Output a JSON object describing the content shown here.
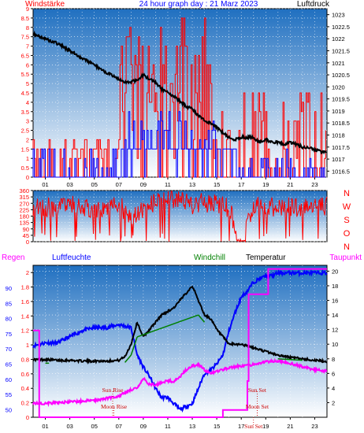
{
  "title": "24 hour graph day : 21 Marz 2023",
  "colors": {
    "wind": "#ff0000",
    "gust": "#0000ff",
    "pressure": "#000000",
    "wind_dir": "#ff0000",
    "humidity": "#0000ff",
    "temperature": "#000000",
    "windchill": "#008000",
    "dewpoint": "#ff00ff",
    "rain": "#ff0000",
    "label_red": "#ff0000",
    "label_blue": "#0000ff",
    "label_magenta": "#ff00ff",
    "sky_top": "#1f6fc0",
    "sky_bottom": "#ffffff"
  },
  "chart_data": [
    {
      "type": "line",
      "name": "wind-pressure",
      "title": "24 hour graph day : 21 Marz 2023",
      "left_axis_label": "Windstärke",
      "right_axis_label": "Luftdruck",
      "y_left": {
        "min": 0,
        "max": 9,
        "ticks": [
          "0",
          "0.5",
          "1",
          "1.5",
          "2",
          "2.5",
          "3",
          "3.5",
          "4",
          "4.5",
          "5",
          "5.5",
          "6",
          "6.5",
          "7",
          "7.5",
          "8",
          "8.5",
          "9"
        ]
      },
      "y_right": {
        "min": 1016.25,
        "max": 1023.25,
        "ticks": [
          "1016.5",
          "1017",
          "1017.5",
          "1018",
          "1018.5",
          "1019",
          "1019.5",
          "1020",
          "1020.5",
          "1021",
          "1021.5",
          "1022",
          "1022.5",
          "1023"
        ]
      },
      "x_ticks": [
        "01",
        "03",
        "05",
        "07",
        "09",
        "11",
        "13",
        "15",
        "17",
        "19",
        "21",
        "23"
      ],
      "series": [
        {
          "name": "",
          "color": "#000000",
          "axis": "right",
          "x": [
            0,
            1,
            2,
            3,
            4,
            5,
            6,
            7,
            7.5,
            8,
            8.5,
            9,
            9.5,
            10,
            10.5,
            11,
            11.5,
            12,
            12.5,
            13,
            13.5,
            14,
            14.5,
            15,
            15.5,
            16,
            16.5,
            17,
            17.5,
            18,
            18.5,
            19,
            19.5,
            20,
            20.5,
            21,
            21.5,
            22,
            22.5,
            23,
            23.5,
            24
          ],
          "y": [
            1022.2,
            1022.0,
            1021.8,
            1021.5,
            1021.2,
            1020.9,
            1020.6,
            1020.3,
            1020.2,
            1020.2,
            1020.3,
            1020.5,
            1020.3,
            1020.2,
            1019.9,
            1019.8,
            1019.6,
            1019.4,
            1019.2,
            1019.1,
            1018.8,
            1018.6,
            1018.5,
            1018.3,
            1018.1,
            1017.9,
            1017.8,
            1017.9,
            1017.9,
            1017.9,
            1017.7,
            1017.8,
            1017.7,
            1017.7,
            1017.6,
            1017.7,
            1017.6,
            1017.5,
            1017.5,
            1017.4,
            1017.3,
            1017.3
          ]
        }
      ]
    },
    {
      "type": "line",
      "name": "wind-direction",
      "y_left": {
        "min": 0,
        "max": 360,
        "ticks": [
          "0",
          "45",
          "90",
          "135",
          "180",
          "225",
          "270",
          "315",
          "360"
        ]
      },
      "compass_labels": [
        "N",
        "W",
        "S",
        "O",
        "N"
      ],
      "series": [
        {
          "name": "",
          "color": "#ff0000",
          "x": [
            0,
            1,
            2,
            3,
            4,
            5,
            6,
            7,
            8,
            9,
            10,
            11,
            12,
            13,
            14,
            15,
            16,
            17,
            18,
            19,
            20,
            21,
            22,
            23,
            24
          ],
          "y": [
            250,
            240,
            245,
            255,
            250,
            200,
            230,
            260,
            180,
            220,
            280,
            300,
            310,
            250,
            280,
            260,
            240,
            0,
            250,
            240,
            245,
            250,
            240,
            245,
            250
          ]
        }
      ]
    },
    {
      "type": "line",
      "name": "climate",
      "legend": [
        "Regen",
        "Luftfeuchte",
        "Windchill",
        "Temperatur",
        "Taupunkt"
      ],
      "y_left_humidity": {
        "min": 47.5,
        "max": 97.5,
        "ticks": [
          "50",
          "55",
          "60",
          "65",
          "70",
          "75",
          "80",
          "85",
          "90"
        ]
      },
      "y_left_rain": {
        "min": 0,
        "max": 2.1,
        "ticks": [
          "0",
          "0.2",
          "0.4",
          "0.6",
          "0.8",
          "1",
          "1.2",
          "1.4",
          "1.6",
          "1.8",
          "2"
        ]
      },
      "y_right_temp": {
        "min": 0,
        "max": 20.8,
        "ticks": [
          "2",
          "4",
          "6",
          "8",
          "10",
          "12",
          "14",
          "16",
          "18",
          "20"
        ]
      },
      "x_ticks": [
        "01",
        "03",
        "05",
        "07",
        "09",
        "11",
        "13",
        "15",
        "17",
        "19",
        "21",
        "23"
      ],
      "annotations": [
        {
          "text": "Sun Rise",
          "x": 6.5
        },
        {
          "text": "Moon Rise",
          "x": 6.6
        },
        {
          "text": "Sun Set",
          "x": 18.3
        },
        {
          "text": "Moon Set",
          "x": 18.3
        },
        {
          "text": "Sun Set",
          "x": 18.0
        }
      ],
      "series": [
        {
          "name": "Luftfeuchte",
          "color": "#0000ff",
          "axis": "humidity",
          "x": [
            0,
            1,
            2,
            3,
            4,
            5,
            6,
            7,
            8,
            8.5,
            9,
            9.5,
            10,
            10.5,
            11,
            11.5,
            12,
            12.5,
            13,
            13.5,
            14,
            14.5,
            15,
            15.5,
            16,
            16.5,
            17,
            17.5,
            18,
            18.5,
            19,
            19.5,
            20,
            21,
            22,
            23,
            24
          ],
          "y": [
            71,
            72,
            72,
            74,
            76,
            77,
            77,
            78,
            77,
            68,
            64,
            61,
            57,
            54,
            54,
            52,
            50,
            51,
            52,
            57,
            62,
            63,
            65,
            68,
            76,
            82,
            87,
            89,
            92,
            93,
            94,
            94,
            95,
            95,
            95,
            95,
            95
          ]
        },
        {
          "name": "Temperatur",
          "color": "#000000",
          "axis": "temp",
          "x": [
            0,
            1,
            2,
            3,
            4,
            5,
            6,
            7,
            7.5,
            8,
            8.5,
            9,
            9.5,
            10,
            10.5,
            11,
            11.5,
            12,
            12.5,
            13,
            13.5,
            14,
            14.5,
            15,
            15.5,
            16,
            17,
            18,
            19,
            20,
            21,
            22,
            23,
            24
          ],
          "y": [
            7.9,
            7.9,
            7.8,
            7.8,
            7.7,
            7.7,
            7.7,
            7.8,
            8.3,
            10.0,
            13.0,
            11.0,
            12.0,
            13.0,
            14.0,
            14.5,
            15.0,
            16.0,
            17.0,
            18.0,
            16.0,
            14.0,
            13.5,
            12.0,
            11.0,
            10.0,
            10.0,
            9.5,
            9.0,
            8.5,
            8.2,
            8.0,
            7.8,
            7.6
          ]
        },
        {
          "name": "Windchill",
          "color": "#008000",
          "axis": "temp",
          "x": [
            1,
            1.3,
            7.5,
            8,
            8.5,
            13.5,
            14,
            20,
            21,
            22
          ],
          "y": [
            7.4,
            7.4,
            7.5,
            8.5,
            11,
            14,
            13,
            8,
            7.9,
            7.8
          ]
        },
        {
          "name": "Taupunkt",
          "color": "#ff00ff",
          "axis": "temp",
          "x": [
            0,
            1,
            2,
            3,
            4,
            5,
            6,
            7,
            8,
            8.5,
            9,
            9.5,
            10,
            10.5,
            11,
            11.5,
            12,
            12.5,
            13,
            13.5,
            14,
            14.5,
            15,
            16,
            17,
            18,
            19,
            20,
            21,
            22,
            23,
            24
          ],
          "y": [
            1.9,
            1.9,
            2.0,
            2.1,
            2.2,
            2.3,
            2.6,
            2.9,
            3.8,
            3.9,
            5.3,
            4.5,
            4.4,
            4.8,
            5.0,
            4.9,
            5.5,
            6.5,
            7.0,
            7.2,
            6.5,
            6.0,
            6.3,
            6.8,
            7.0,
            7.2,
            7.6,
            7.7,
            7.4,
            6.9,
            6.5,
            6.3
          ]
        },
        {
          "name": "Regen",
          "color": "#ff00ff",
          "axis": "rain",
          "x": [
            0,
            0.4,
            0.5,
            15.4,
            15.5,
            17.5,
            17.6,
            19,
            19.2,
            24
          ],
          "y": [
            1.2,
            1.2,
            0,
            0,
            0.1,
            0.5,
            1.7,
            1.7,
            2.05,
            2.05
          ]
        }
      ]
    }
  ]
}
